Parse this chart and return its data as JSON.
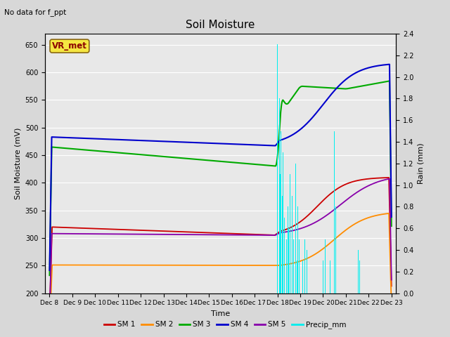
{
  "title": "Soil Moisture",
  "ylabel_left": "Soil Moisture (mV)",
  "ylabel_right": "Rain (mm)",
  "xlabel": "Time",
  "annotation_text": "No data for f_ppt",
  "vr_met_label": "VR_met",
  "ylim_left": [
    200,
    670
  ],
  "ylim_right": [
    0.0,
    2.4
  ],
  "yticks_left": [
    200,
    250,
    300,
    350,
    400,
    450,
    500,
    550,
    600,
    650
  ],
  "yticks_right": [
    0.0,
    0.2,
    0.4,
    0.6,
    0.8,
    1.0,
    1.2,
    1.4,
    1.6,
    1.8,
    2.0,
    2.2,
    2.4
  ],
  "x_labels": [
    "Dec 8",
    "Dec 9",
    "Dec 10",
    "Dec 11",
    "Dec 12",
    "Dec 13",
    "Dec 14",
    "Dec 15",
    "Dec 16",
    "Dec 17",
    "Dec 18",
    "Dec 19",
    "Dec 20",
    "Dec 21",
    "Dec 22",
    "Dec 23"
  ],
  "colors": {
    "SM1": "#cc0000",
    "SM2": "#ff8c00",
    "SM3": "#00aa00",
    "SM4": "#0000cc",
    "SM5": "#8800aa",
    "Precip": "#00eeee"
  },
  "legend_labels": [
    "SM 1",
    "SM 2",
    "SM 3",
    "SM 4",
    "SM 5",
    "Precip_mm"
  ],
  "fig_bg": "#d8d8d8",
  "plot_bg": "#e8e8e8",
  "grid_color": "#ffffff"
}
